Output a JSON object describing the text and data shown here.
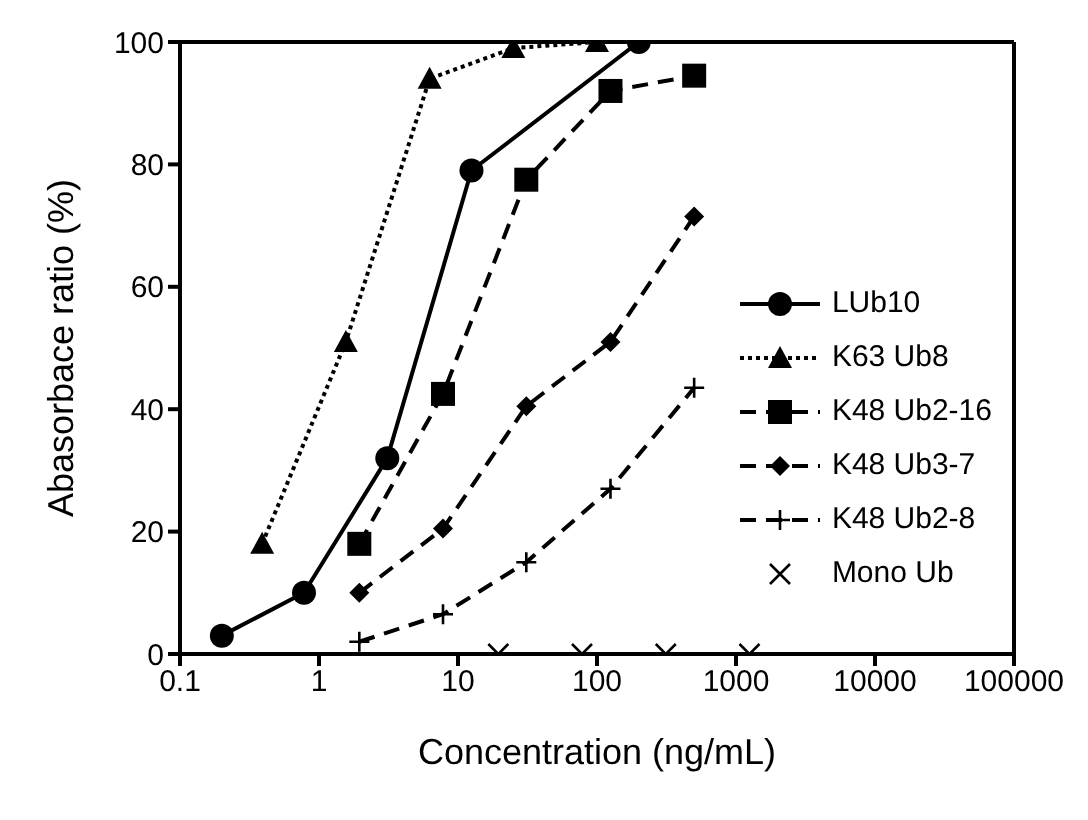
{
  "chart_data": {
    "type": "line",
    "xlabel": "Concentration (ng/mL)",
    "ylabel": "Abasorbace ratio (%)",
    "log": "x",
    "xlim": [
      0.1,
      100000
    ],
    "xticks": [
      0.1,
      1,
      10,
      100,
      1000,
      10000,
      100000
    ],
    "ylim": [
      0,
      100
    ],
    "yticks": [
      0,
      20,
      40,
      60,
      80,
      100
    ],
    "grid": false,
    "legend": "right",
    "series": [
      {
        "name": "LUb10",
        "color": "#000000",
        "marker": "circle",
        "line_style": "solid",
        "x": [
          0.2,
          0.78,
          3.1,
          12.5,
          200
        ],
        "values": [
          3,
          10,
          32,
          79,
          100
        ]
      },
      {
        "name": "K63 Ub8",
        "color": "#000000",
        "marker": "triangle",
        "line_style": "dotted",
        "x": [
          0.39,
          1.56,
          6.25,
          25,
          100
        ],
        "values": [
          18,
          51,
          94,
          99,
          100
        ]
      },
      {
        "name": "K48 Ub2-16",
        "color": "#000000",
        "marker": "square",
        "line_style": "dashed",
        "x": [
          1.95,
          7.8,
          31,
          125,
          500
        ],
        "values": [
          18,
          42.5,
          77.5,
          92,
          94.5
        ]
      },
      {
        "name": "K48 Ub3-7",
        "color": "#000000",
        "marker": "diamond",
        "line_style": "dashed",
        "x": [
          1.95,
          7.8,
          31,
          125,
          500
        ],
        "values": [
          10,
          20.5,
          40.5,
          51,
          71.5
        ]
      },
      {
        "name": "K48 Ub2-8",
        "color": "#000000",
        "marker": "plus",
        "line_style": "dashed",
        "x": [
          1.95,
          7.8,
          31,
          125,
          500
        ],
        "values": [
          2,
          6.5,
          15,
          27,
          43.5
        ]
      },
      {
        "name": "Mono Ub",
        "type": "scatter",
        "color": "#000000",
        "marker": "cross",
        "x": [
          19.5,
          78,
          312.5,
          1250
        ],
        "values": [
          0,
          0,
          0,
          0
        ]
      }
    ]
  }
}
